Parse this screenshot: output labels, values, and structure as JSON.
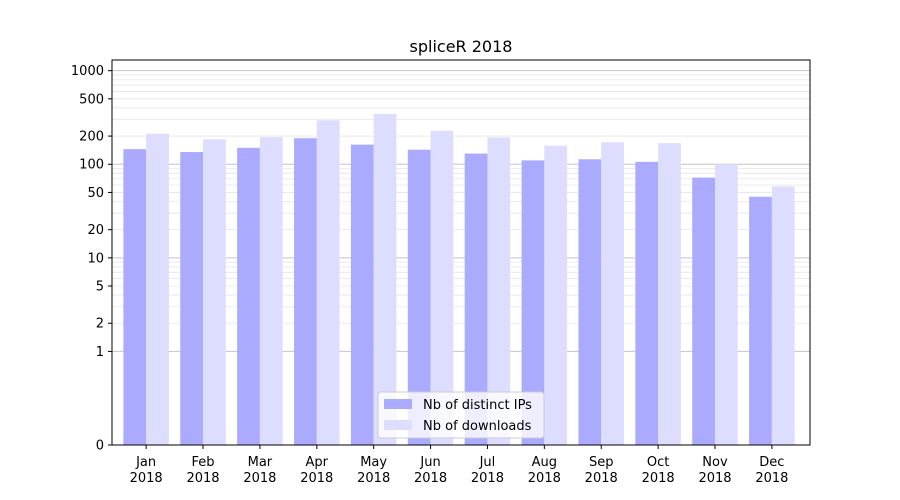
{
  "chart_data": {
    "type": "bar",
    "title": "spliceR 2018",
    "xlabel": "",
    "ylabel": "",
    "yscale": "symlog",
    "ylim": [
      0,
      1300
    ],
    "yticks": [
      0,
      1,
      2,
      5,
      10,
      20,
      50,
      100,
      200,
      500,
      1000
    ],
    "ytick_labels": [
      "0",
      "1",
      "2",
      "5",
      "10",
      "20",
      "50",
      "100",
      "200",
      "500",
      "1000"
    ],
    "categories": [
      {
        "month": "Jan",
        "year": "2018"
      },
      {
        "month": "Feb",
        "year": "2018"
      },
      {
        "month": "Mar",
        "year": "2018"
      },
      {
        "month": "Apr",
        "year": "2018"
      },
      {
        "month": "May",
        "year": "2018"
      },
      {
        "month": "Jun",
        "year": "2018"
      },
      {
        "month": "Jul",
        "year": "2018"
      },
      {
        "month": "Aug",
        "year": "2018"
      },
      {
        "month": "Sep",
        "year": "2018"
      },
      {
        "month": "Oct",
        "year": "2018"
      },
      {
        "month": "Nov",
        "year": "2018"
      },
      {
        "month": "Dec",
        "year": "2018"
      }
    ],
    "series": [
      {
        "name": "Nb of distinct IPs",
        "color": "#aaaaff",
        "values": [
          145,
          135,
          150,
          190,
          162,
          143,
          130,
          110,
          113,
          106,
          72,
          45
        ]
      },
      {
        "name": "Nb of downloads",
        "color": "#ddddff",
        "values": [
          212,
          185,
          195,
          295,
          345,
          228,
          193,
          158,
          172,
          168,
          100,
          58
        ]
      }
    ],
    "grid": true,
    "legend_position": "bottom-center"
  }
}
